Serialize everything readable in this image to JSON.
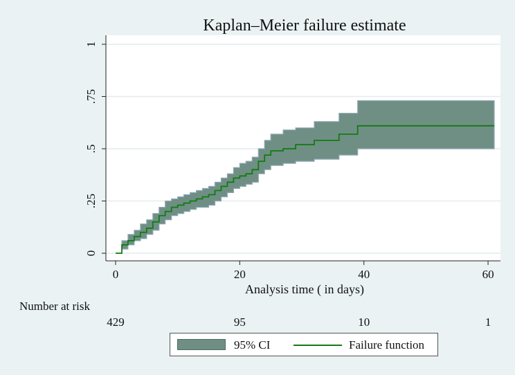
{
  "chart_data": {
    "type": "line",
    "title": "Kaplan–Meier failure estimate",
    "xlabel": "Analysis time ( in days)",
    "ylabel": "",
    "xlim": [
      0,
      62
    ],
    "ylim": [
      0,
      1
    ],
    "x_ticks": [
      0,
      20,
      40,
      60
    ],
    "x_tick_labels": [
      "0",
      "20",
      "40",
      "60"
    ],
    "y_ticks": [
      0,
      0.25,
      0.5,
      0.75,
      1
    ],
    "y_tick_labels": [
      "0",
      ".25",
      ".5",
      ".75",
      "1"
    ],
    "grid": true,
    "legend_placement": "bottom",
    "series": [
      {
        "name": "Failure function",
        "color": "#137a13",
        "x": [
          0,
          1,
          2,
          3,
          4,
          5,
          6,
          7,
          8,
          9,
          10,
          11,
          12,
          13,
          14,
          15,
          16,
          17,
          18,
          19,
          20,
          21,
          22,
          23,
          24,
          25,
          27,
          29,
          32,
          36,
          39,
          61
        ],
        "y": [
          0,
          0.04,
          0.06,
          0.08,
          0.1,
          0.12,
          0.15,
          0.18,
          0.2,
          0.22,
          0.23,
          0.24,
          0.25,
          0.26,
          0.27,
          0.28,
          0.3,
          0.32,
          0.34,
          0.36,
          0.37,
          0.38,
          0.4,
          0.44,
          0.47,
          0.49,
          0.5,
          0.52,
          0.54,
          0.57,
          0.61,
          0.61
        ]
      }
    ],
    "confidence_band": {
      "name": "95% CI",
      "color": "#6f8f84",
      "x": [
        0,
        1,
        2,
        3,
        4,
        5,
        6,
        7,
        8,
        9,
        10,
        11,
        12,
        13,
        14,
        15,
        16,
        17,
        18,
        19,
        20,
        21,
        22,
        23,
        24,
        25,
        27,
        29,
        32,
        36,
        39,
        61
      ],
      "lower": [
        0,
        0.02,
        0.04,
        0.06,
        0.07,
        0.09,
        0.11,
        0.14,
        0.16,
        0.18,
        0.19,
        0.2,
        0.21,
        0.22,
        0.22,
        0.23,
        0.25,
        0.27,
        0.29,
        0.31,
        0.32,
        0.33,
        0.34,
        0.38,
        0.4,
        0.42,
        0.43,
        0.44,
        0.45,
        0.47,
        0.5,
        0.5
      ],
      "upper": [
        0,
        0.06,
        0.09,
        0.11,
        0.14,
        0.16,
        0.19,
        0.22,
        0.25,
        0.26,
        0.27,
        0.28,
        0.29,
        0.3,
        0.31,
        0.32,
        0.34,
        0.36,
        0.38,
        0.41,
        0.43,
        0.44,
        0.46,
        0.5,
        0.54,
        0.57,
        0.59,
        0.6,
        0.63,
        0.67,
        0.73,
        0.73
      ]
    },
    "risk_table": {
      "label": "Number at risk",
      "times": [
        0,
        20,
        40,
        60
      ],
      "counts": [
        "429",
        "95",
        "10",
        "1"
      ]
    },
    "legend": {
      "ci_label": "95% CI",
      "line_label": "Failure function"
    }
  }
}
